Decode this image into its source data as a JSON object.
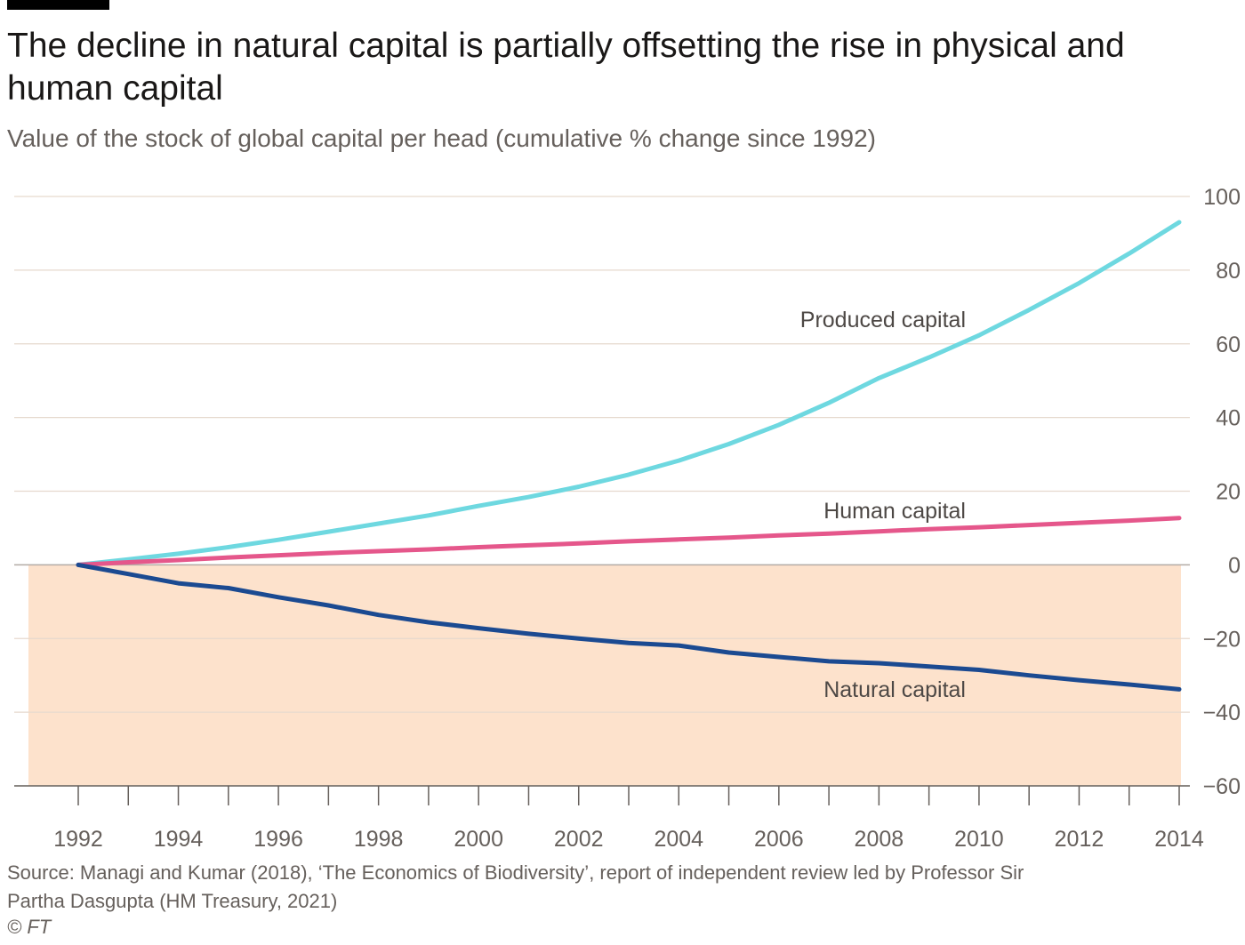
{
  "header": {
    "title": "The decline in natural capital is partially offsetting the rise in physical and human capital",
    "subtitle": "Value of the stock of global capital per head (cumulative % change since 1992)"
  },
  "footer": {
    "source": "Source: Managi and Kumar (2018), ‘The Economics of Biodiversity’, report of independent review led by Professor Sir Partha Dasgupta (HM Treasury, 2021)",
    "copyright": "© FT"
  },
  "chart_data": {
    "type": "line",
    "title": "The decline in natural capital is partially offsetting the rise in physical and human capital",
    "subtitle": "Value of the stock of global capital per head (cumulative % change since 1992)",
    "xlabel": "",
    "ylabel": "",
    "xlim": [
      1991,
      2014
    ],
    "ylim": [
      -60,
      100
    ],
    "x_ticks": [
      1992,
      1994,
      1996,
      1998,
      2000,
      2002,
      2004,
      2006,
      2008,
      2010,
      2012,
      2014
    ],
    "y_ticks": [
      -60,
      -40,
      -20,
      0,
      20,
      40,
      60,
      80,
      100
    ],
    "negative_region_color": "#fde2cc",
    "gridline_color": "#e6d9ce",
    "x": [
      1992,
      1993,
      1994,
      1995,
      1996,
      1997,
      1998,
      1999,
      2000,
      2001,
      2002,
      2003,
      2004,
      2005,
      2006,
      2007,
      2008,
      2009,
      2010,
      2011,
      2012,
      2013,
      2014
    ],
    "series": [
      {
        "name": "Produced capital",
        "color": "#6ed8e0",
        "values": [
          0,
          1.5,
          3,
          4.8,
          6.8,
          9,
          11.2,
          13.4,
          16,
          18.4,
          21.2,
          24.5,
          28.3,
          32.8,
          38,
          44,
          50.7,
          56.3,
          62.3,
          69.2,
          76.5,
          84.5,
          93
        ]
      },
      {
        "name": "Human capital",
        "color": "#e5578b",
        "values": [
          0,
          0.7,
          1.3,
          2,
          2.6,
          3.2,
          3.7,
          4.2,
          4.8,
          5.3,
          5.8,
          6.4,
          6.9,
          7.4,
          8,
          8.5,
          9.1,
          9.7,
          10.2,
          10.8,
          11.4,
          12,
          12.7
        ]
      },
      {
        "name": "Natural capital",
        "color": "#1b4a91",
        "values": [
          0,
          -2.5,
          -5,
          -6.3,
          -8.8,
          -11,
          -13.6,
          -15.6,
          -17.2,
          -18.7,
          -20,
          -21.2,
          -21.9,
          -23.8,
          -25,
          -26.2,
          -26.7,
          -27.6,
          -28.5,
          -30,
          -31.3,
          -32.5,
          -33.8
        ]
      }
    ],
    "series_label_positions": [
      "above-line",
      "above-line",
      "below-line"
    ]
  }
}
